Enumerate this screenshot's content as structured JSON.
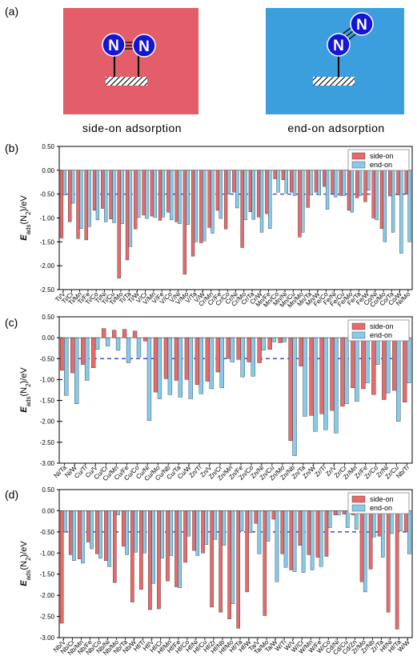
{
  "figure": {
    "panel_a_label": "(a)",
    "side_on_caption": "side-on adsorption",
    "end_on_caption": "end-on adsorption",
    "atom_label": "N",
    "colors": {
      "side_panel": "#E35D6A",
      "end_panel": "#3B9FDE",
      "atom": "#1515D8",
      "side_on_bar": "#E96A6A",
      "end_on_bar": "#86CBEB",
      "threshold_line": "#2222DD"
    }
  },
  "chart_data": [
    {
      "panel_label": "(b)",
      "type": "bar",
      "ylabel": "E_ads(N2)/eV",
      "ylim": [
        -2.5,
        0.5
      ],
      "yticks": [
        "0.50",
        "0.00",
        "-0.50",
        "-1.00",
        "-1.50",
        "-2.00",
        "-2.50"
      ],
      "threshold": -0.5,
      "legend": "top-right",
      "series": [
        {
          "name": "side-on",
          "values": [
            -1.42,
            -1.08,
            -1.43,
            -1.46,
            -0.84,
            -0.8,
            -1.02,
            -2.26,
            -1.88,
            -1.23,
            -0.94,
            -0.96,
            -1.05,
            -0.88,
            -1.08,
            -2.18,
            -1.8,
            -1.52,
            -1.2,
            -0.84,
            -1.23,
            -0.46,
            -1.62,
            -0.87,
            -0.98,
            -0.91,
            -0.18,
            -0.2,
            -0.46,
            -1.4,
            -0.78,
            -0.46,
            -0.34,
            -0.48,
            -0.53,
            -0.84,
            -0.58,
            -0.66,
            -1.0,
            -1.22,
            -0.54,
            -0.52,
            -0.5
          ]
        },
        {
          "name": "end-on",
          "values": [
            -0.52,
            -0.69,
            -1.22,
            -1.18,
            -1.04,
            -1.08,
            -1.1,
            -1.12,
            -1.6,
            -0.99,
            -1.01,
            -0.99,
            -0.98,
            -1.04,
            -1.12,
            -1.14,
            -1.5,
            -1.48,
            -1.32,
            -1.01,
            -0.5,
            -0.79,
            -1.04,
            -1.03,
            -1.3,
            -1.22,
            -0.46,
            -0.48,
            -0.53,
            -1.3,
            -0.52,
            -0.52,
            -0.82,
            -0.56,
            -0.53,
            -0.88,
            -0.53,
            -0.42,
            -1.04,
            -1.5,
            -1.3,
            -1.74,
            -1.5
          ]
        }
      ],
      "x_labels": [
        "Ti/V",
        "Ti/Cr",
        "Ti/Mn",
        "Ti/Fe",
        "Ti/Co",
        "Ti/Ni",
        "Ti/Cu",
        "Ti/Mo",
        "Ti/Ta",
        "Ti/W",
        "V/Cr",
        "V/Mn",
        "V/Fe",
        "V/Co",
        "V/Ni",
        "V/Mo",
        "V/Ta",
        "V/W",
        "Cr/Mn",
        "Cr/Fe",
        "Cr/Co",
        "Cr/Ni",
        "Cr/Mo",
        "Cr/Ta",
        "Cr/W",
        "Mn/Fe",
        "Mn/Co",
        "Mn/Ni",
        "Mn/Cu",
        "Mn/Mo",
        "Mn/Ta",
        "Mn/W",
        "Fe/Co",
        "Fe/Ni",
        "Fe/Cu",
        "Fe/Mo",
        "Fe/Ta",
        "Fe/W",
        "Co/Ni",
        "Co/Mo",
        "Co/Ta",
        "Co/W",
        "Ni/Mo"
      ]
    },
    {
      "panel_label": "(c)",
      "type": "bar",
      "ylabel": "E_ads(N2)/eV",
      "ylim": [
        -3.0,
        0.5
      ],
      "yticks": [
        "0.50",
        "0.00",
        "-0.50",
        "-1.00",
        "-1.50",
        "-2.00",
        "-2.50",
        "-3.00"
      ],
      "threshold": -0.5,
      "legend": "top-right",
      "series": [
        {
          "name": "side-on",
          "values": [
            -0.78,
            -0.84,
            -0.64,
            -0.72,
            0.22,
            0.18,
            0.2,
            0.16,
            -0.08,
            -1.3,
            -0.98,
            -1.02,
            -1.0,
            -1.12,
            -1.04,
            -0.82,
            -0.5,
            -0.52,
            -0.58,
            -0.6,
            -0.28,
            -0.12,
            -2.46,
            -0.68,
            -1.86,
            -1.82,
            -1.74,
            -1.64,
            -1.2,
            -1.22,
            -1.36,
            -1.48,
            -1.26,
            -1.54
          ]
        },
        {
          "name": "end-on",
          "values": [
            -1.38,
            -1.58,
            -1.02,
            -0.28,
            -0.2,
            -0.3,
            -0.6,
            -0.46,
            -1.98,
            -1.46,
            -1.36,
            -1.42,
            -1.46,
            -1.34,
            -1.22,
            -1.2,
            -0.58,
            -0.94,
            -0.92,
            -0.3,
            -0.1,
            -0.1,
            -2.82,
            -1.88,
            -2.24,
            -2.2,
            -2.28,
            -1.58,
            -1.52,
            -1.08,
            -0.64,
            -1.32,
            -2.0,
            -1.08
          ]
        }
      ],
      "x_labels": [
        "Ni/Ta",
        "Ni/W",
        "Cu/Ti",
        "Cu/V",
        "Cu/Cr",
        "Cu/Mn",
        "Cu/Fe",
        "Cu/Co",
        "Cu/Ni",
        "Cu/Mo",
        "Cu/Nb",
        "Cu/Ta",
        "Cu/W",
        "Zn/Ti",
        "Zn/V",
        "Zn/Cr",
        "Zn/Mn",
        "Zn/Fe",
        "Zn/Co",
        "Zn/Ni",
        "Zn/Cu",
        "Zn/Mo",
        "Zn/Nb",
        "Zn/Ta",
        "Zn/W",
        "Zr/Ti",
        "Zr/V",
        "Zr/Cr",
        "Zr/Mn",
        "Zr/Fe",
        "Zr/Co",
        "Zr/Ni",
        "Zr/Cu",
        "Nb/Ti"
      ]
    },
    {
      "panel_label": "(d)",
      "type": "bar",
      "ylabel": "E_ads(N2)/eV",
      "ylim": [
        -3.0,
        0.5
      ],
      "yticks": [
        "0.50",
        "0.00",
        "-0.50",
        "-1.00",
        "-1.50",
        "-2.00",
        "-2.50",
        "-3.00"
      ],
      "threshold": -0.5,
      "legend": "top-right",
      "series": [
        {
          "name": "side-on",
          "values": [
            -2.66,
            -1.04,
            -1.14,
            -0.74,
            -1.02,
            -1.18,
            -1.7,
            -0.84,
            -2.16,
            -1.86,
            -2.34,
            -2.32,
            -1.66,
            -1.8,
            -1.22,
            -0.94,
            -1.0,
            -2.28,
            -2.4,
            -2.56,
            -2.78,
            -1.92,
            -0.3,
            -2.48,
            -0.2,
            -1.02,
            -1.4,
            -0.82,
            -1.04,
            -1.1,
            -1.08,
            -0.1,
            -0.08,
            -0.1,
            -1.68,
            -1.38,
            -0.6,
            -2.4,
            -2.8,
            -0.5
          ]
        },
        {
          "name": "end-on",
          "values": [
            -0.5,
            -1.18,
            -1.24,
            -0.9,
            -1.12,
            -1.32,
            -0.1,
            -1.04,
            -0.98,
            -1.0,
            -1.72,
            -1.12,
            -1.06,
            -1.82,
            -0.6,
            -1.06,
            -0.8,
            -0.68,
            -0.82,
            -2.2,
            -0.48,
            -0.52,
            -1.02,
            -0.72,
            -1.68,
            -1.34,
            -1.44,
            -1.46,
            -1.4,
            -1.32,
            -0.4,
            -0.1,
            -0.4,
            -0.44,
            -1.92,
            -0.62,
            -1.1,
            -0.54,
            -0.48,
            -1.02
          ]
        }
      ],
      "x_labels": [
        "Nb/V",
        "Nb/Cr",
        "Nb/Mn",
        "Nb/Fe",
        "Nb/Co",
        "Nb/Ni",
        "Nb/Mo",
        "Nb/Ta",
        "Nb/W",
        "Hf/Ti",
        "Hf/V",
        "Hf/Cr",
        "Hf/Mn",
        "Hf/Fe",
        "Hf/Co",
        "Hf/Ni",
        "Hf/Cu",
        "Hf/Zr",
        "Hf/Nb",
        "Hf/Mo",
        "Hf/Ta",
        "Hf/W",
        "Ta/V",
        "Ta/Mo",
        "Ta/W",
        "W/Ti",
        "W/V",
        "W/Cr",
        "W/Mn",
        "W/Fe",
        "W/Co",
        "Cd/Ni",
        "Cd/Cu",
        "Cd/Zn",
        "Zr/Mo",
        "Zr/Nb",
        "Zr/Ta",
        "Hf/Ni",
        "Hf/Ta",
        "W/W"
      ]
    }
  ]
}
